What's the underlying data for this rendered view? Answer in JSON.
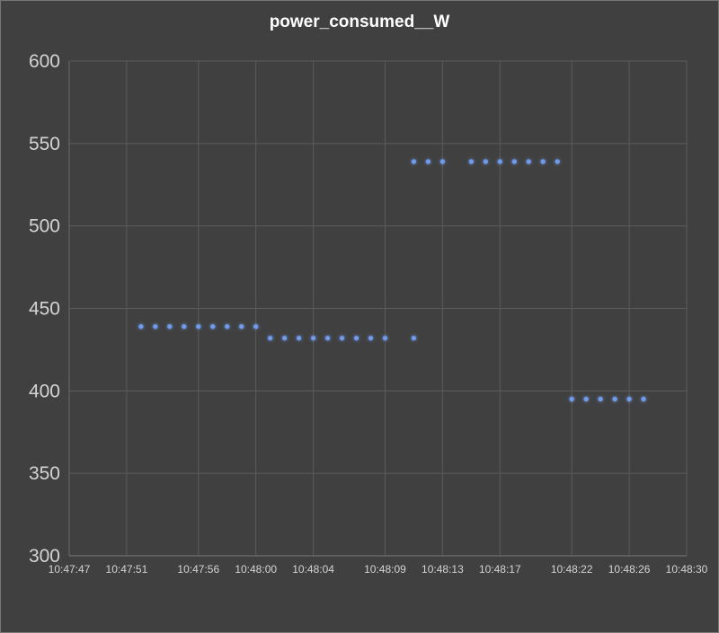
{
  "chart_data": {
    "type": "scatter",
    "title": "power_consumed__W",
    "xlabel": "",
    "ylabel": "",
    "ylim": [
      300,
      600
    ],
    "yticks": [
      300,
      350,
      400,
      450,
      500,
      550,
      600
    ],
    "xlim": [
      "10:47:47",
      "10:48:30"
    ],
    "xticks": [
      "10:47:47",
      "10:47:51",
      "10:47:56",
      "10:48:00",
      "10:48:04",
      "10:48:09",
      "10:48:13",
      "10:48:17",
      "10:48:22",
      "10:48:26",
      "10:48:30"
    ],
    "grid": true,
    "legend": "none",
    "point_color": "#6f9cf0",
    "background_color": "#404040",
    "points": [
      {
        "x": "10:47:52",
        "y": 439
      },
      {
        "x": "10:47:53",
        "y": 439
      },
      {
        "x": "10:47:54",
        "y": 439
      },
      {
        "x": "10:47:55",
        "y": 439
      },
      {
        "x": "10:47:56",
        "y": 439
      },
      {
        "x": "10:47:57",
        "y": 439
      },
      {
        "x": "10:47:58",
        "y": 439
      },
      {
        "x": "10:47:59",
        "y": 439
      },
      {
        "x": "10:48:00",
        "y": 439
      },
      {
        "x": "10:48:01",
        "y": 432
      },
      {
        "x": "10:48:02",
        "y": 432
      },
      {
        "x": "10:48:03",
        "y": 432
      },
      {
        "x": "10:48:04",
        "y": 432
      },
      {
        "x": "10:48:05",
        "y": 432
      },
      {
        "x": "10:48:06",
        "y": 432
      },
      {
        "x": "10:48:07",
        "y": 432
      },
      {
        "x": "10:48:08",
        "y": 432
      },
      {
        "x": "10:48:09",
        "y": 432
      },
      {
        "x": "10:48:11",
        "y": 432
      },
      {
        "x": "10:48:11",
        "y": 539
      },
      {
        "x": "10:48:12",
        "y": 539
      },
      {
        "x": "10:48:13",
        "y": 539
      },
      {
        "x": "10:48:15",
        "y": 539
      },
      {
        "x": "10:48:16",
        "y": 539
      },
      {
        "x": "10:48:17",
        "y": 539
      },
      {
        "x": "10:48:18",
        "y": 539
      },
      {
        "x": "10:48:19",
        "y": 539
      },
      {
        "x": "10:48:20",
        "y": 539
      },
      {
        "x": "10:48:21",
        "y": 539
      },
      {
        "x": "10:48:22",
        "y": 395
      },
      {
        "x": "10:48:23",
        "y": 395
      },
      {
        "x": "10:48:24",
        "y": 395
      },
      {
        "x": "10:48:25",
        "y": 395
      },
      {
        "x": "10:48:26",
        "y": 395
      },
      {
        "x": "10:48:27",
        "y": 395
      }
    ]
  }
}
